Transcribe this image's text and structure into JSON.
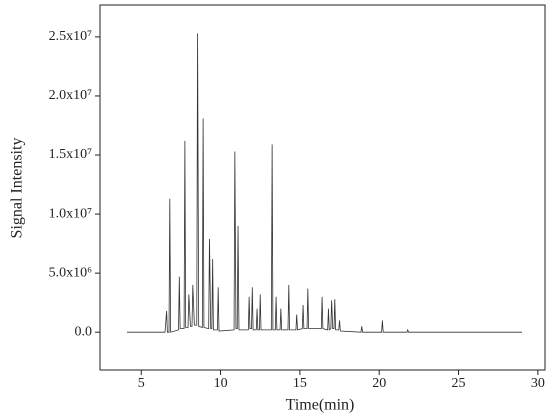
{
  "chart_data": {
    "type": "line",
    "xlabel": "Time(min)",
    "ylabel": "Signal Intensity",
    "color": "#333333",
    "x": [
      4.1,
      6.5,
      6.6,
      6.65,
      6.75,
      6.8,
      6.85,
      7.35,
      7.4,
      7.45,
      7.7,
      7.75,
      7.8,
      7.95,
      8.0,
      8.1,
      8.2,
      8.25,
      8.35,
      8.5,
      8.55,
      8.62,
      8.85,
      8.9,
      8.95,
      9.25,
      9.3,
      9.38,
      9.45,
      9.5,
      9.55,
      9.8,
      9.85,
      9.9,
      10.85,
      10.9,
      10.97,
      11.05,
      11.1,
      11.16,
      11.75,
      11.8,
      11.85,
      11.95,
      12.0,
      12.05,
      12.25,
      12.3,
      12.35,
      12.45,
      12.5,
      12.55,
      13.2,
      13.25,
      13.3,
      13.45,
      13.5,
      13.55,
      13.75,
      13.8,
      13.85,
      14.25,
      14.3,
      14.35,
      14.75,
      14.8,
      14.85,
      15.15,
      15.2,
      15.25,
      15.45,
      15.5,
      15.55,
      16.35,
      16.4,
      16.45,
      16.75,
      16.8,
      16.85,
      16.95,
      17.0,
      17.07,
      17.15,
      17.2,
      17.25,
      17.45,
      17.5,
      17.55,
      18.85,
      18.9,
      18.95,
      20.15,
      20.2,
      20.25,
      21.75,
      21.8,
      21.85,
      29.0
    ],
    "values": [
      0,
      0,
      1800000,
      0,
      0,
      11300000,
      0,
      200000,
      4700000,
      300000,
      300000,
      16200000,
      400000,
      400000,
      3200000,
      500000,
      500000,
      4000000,
      600000,
      600000,
      25300000,
      500000,
      400000,
      18100000,
      400000,
      300000,
      7900000,
      300000,
      300000,
      6200000,
      200000,
      200000,
      3800000,
      100000,
      200000,
      15300000,
      300000,
      300000,
      9000000,
      200000,
      200000,
      3000000,
      300000,
      300000,
      3800000,
      200000,
      200000,
      2000000,
      200000,
      200000,
      3200000,
      200000,
      200000,
      15900000,
      200000,
      200000,
      3000000,
      200000,
      200000,
      2000000,
      200000,
      200000,
      4000000,
      200000,
      200000,
      1500000,
      200000,
      300000,
      2300000,
      300000,
      300000,
      3700000,
      300000,
      300000,
      3000000,
      300000,
      200000,
      2000000,
      200000,
      300000,
      2700000,
      300000,
      300000,
      2800000,
      200000,
      200000,
      1000000,
      100000,
      0,
      500000,
      0,
      0,
      1000000,
      0,
      0,
      200000,
      0,
      0
    ],
    "xlim": [
      2.4,
      30.45
    ],
    "xticks": [
      5,
      10,
      15,
      20,
      25,
      30
    ],
    "ylim": [
      -3200000,
      27700000
    ],
    "yticks": [
      {
        "value": 0,
        "label": "0.0"
      },
      {
        "value": 5000000,
        "label": "5.0x10⁶"
      },
      {
        "value": 10000000,
        "label": "1.0x10⁷"
      },
      {
        "value": 15000000,
        "label": "1.5x10⁷"
      },
      {
        "value": 20000000,
        "label": "2.0x10⁷"
      },
      {
        "value": 25000000,
        "label": "2.5x10⁷"
      }
    ]
  }
}
